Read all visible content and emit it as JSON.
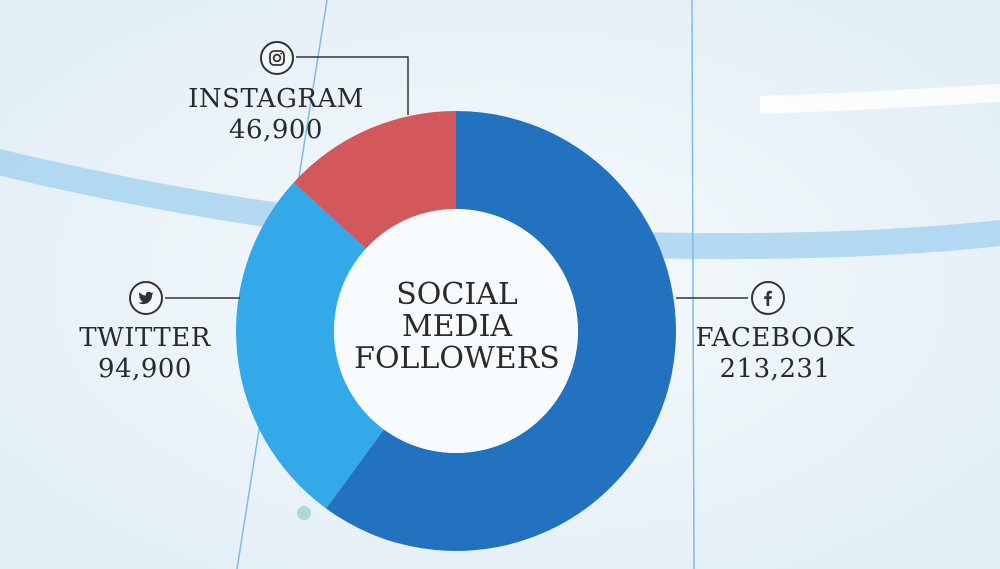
{
  "chart_data": {
    "type": "pie",
    "style": "donut",
    "title": [
      "SOCIAL",
      "MEDIA",
      "FOLLOWERS"
    ],
    "slices": [
      {
        "name": "FACEBOOK",
        "value_label": "213,231",
        "value": 213231,
        "color": "#2372bf",
        "icon": "facebook-icon"
      },
      {
        "name": "TWITTER",
        "value_label": "94,900",
        "value": 94900,
        "color": "#34a9ea",
        "icon": "twitter-icon"
      },
      {
        "name": "INSTAGRAM",
        "value_label": "46,900",
        "value": 46900,
        "color": "#d2585c",
        "icon": "instagram-icon"
      }
    ],
    "colors": {
      "background": "#eef5f9",
      "accent_band": "#a9d4f0",
      "text": "#2a2a2a"
    }
  }
}
